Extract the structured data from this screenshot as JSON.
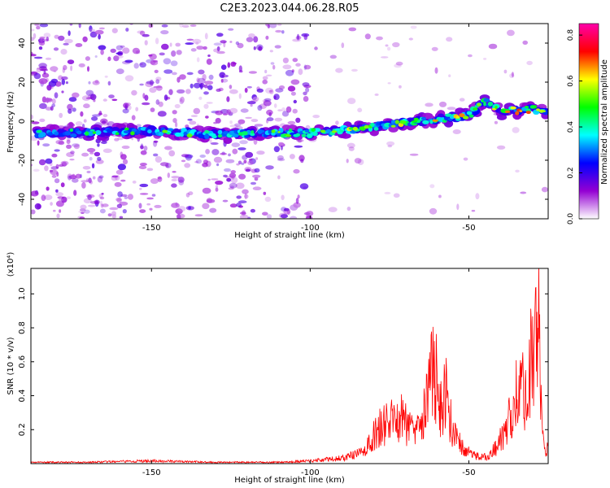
{
  "chart_data": [
    {
      "type": "heatmap",
      "title": "C2E3.2023.044.06.28.R05",
      "xlabel": "Height of straight line (km)",
      "ylabel": "Frequency (Hz)",
      "xlim": [
        -188,
        -25
      ],
      "ylim": [
        -50,
        50
      ],
      "xticks": [
        -150,
        -100,
        -50
      ],
      "yticks": [
        -40,
        -20,
        0,
        20,
        40
      ],
      "grid": false,
      "colorbar": {
        "label": "Normalized spectral amplitude",
        "ticks": [
          0.0,
          0.2,
          0.4,
          0.6,
          0.8
        ],
        "range": [
          0.0,
          0.85
        ],
        "colormap": [
          "#ffffff",
          "#9400d3",
          "#0000ff",
          "#00ffff",
          "#00ff00",
          "#ffff00",
          "#ff0000",
          "#ff00aa"
        ]
      },
      "ridge": {
        "x": [
          -188,
          -175,
          -150,
          -125,
          -110,
          -100,
          -90,
          -80,
          -70,
          -60,
          -50,
          -45,
          -40,
          -30,
          -25
        ],
        "y": [
          -6,
          -6,
          -5,
          -7,
          -6,
          -6,
          -5,
          -3,
          -1,
          1,
          3,
          10,
          5,
          6,
          5
        ]
      },
      "noise_band": [
        -188,
        -100
      ]
    },
    {
      "type": "line",
      "xlabel": "Height of straight line (km)",
      "ylabel": "SNR (10 * v/v)",
      "yscale_label": "(x10⁴)",
      "xlim": [
        -188,
        -25
      ],
      "ylim": [
        0,
        1.15
      ],
      "xticks": [
        -150,
        -100,
        -50
      ],
      "yticks": [
        0.2,
        0.4,
        0.6,
        0.8,
        1.0
      ],
      "line_color": "#ff0000",
      "series": [
        {
          "x": [
            -188,
            -170,
            -150,
            -130,
            -110,
            -100,
            -95,
            -90,
            -85,
            -82,
            -80,
            -78,
            -75,
            -72,
            -70,
            -68,
            -66,
            -64,
            -62,
            -61,
            -60,
            -59,
            -58,
            -57,
            -56,
            -55,
            -54,
            -52,
            -50,
            -48,
            -46,
            -44,
            -42,
            -40,
            -38,
            -36,
            -35,
            -34,
            -33,
            -32,
            -31,
            -30,
            -29,
            -28,
            -27,
            -26,
            -25
          ],
          "y": [
            0.01,
            0.01,
            0.02,
            0.01,
            0.01,
            0.02,
            0.03,
            0.04,
            0.07,
            0.12,
            0.2,
            0.27,
            0.3,
            0.35,
            0.3,
            0.28,
            0.36,
            0.4,
            0.6,
            0.75,
            0.58,
            0.38,
            0.45,
            0.55,
            0.35,
            0.25,
            0.18,
            0.12,
            0.08,
            0.06,
            0.05,
            0.05,
            0.1,
            0.18,
            0.25,
            0.45,
            0.55,
            0.5,
            0.65,
            0.45,
            0.72,
            0.82,
            0.95,
            1.15,
            0.3,
            0.1,
            0.1
          ]
        }
      ]
    }
  ]
}
